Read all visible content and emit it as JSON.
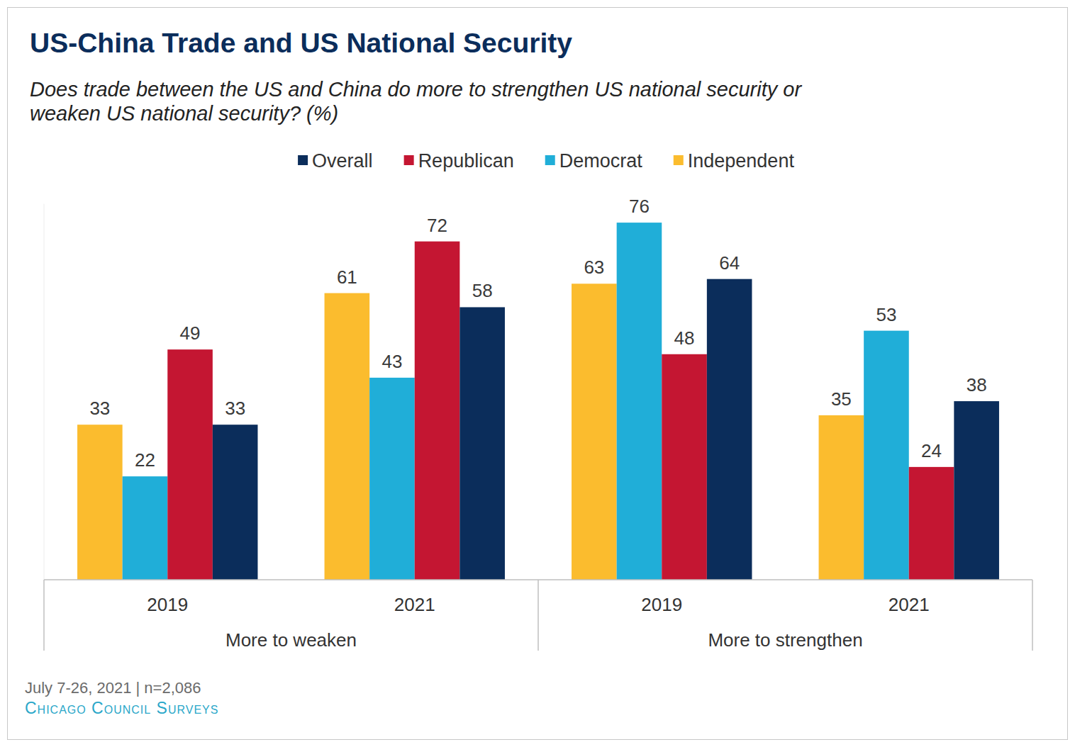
{
  "chart_data": {
    "type": "bar",
    "title": "US-China Trade and US National Security",
    "subtitle": [
      "Does trade between the US and China do more to strengthen US national security or",
      "weaken US national security? (%)"
    ],
    "categories": [
      "2019",
      "2021",
      "2019",
      "2021"
    ],
    "category_groups": [
      "More to weaken",
      "More to weaken",
      "More to strengthen",
      "More to strengthen"
    ],
    "series": [
      {
        "name": "Independent",
        "color": "#fbbc2e",
        "values": [
          33,
          61,
          63,
          35
        ]
      },
      {
        "name": "Democrat",
        "color": "#20aed8",
        "values": [
          22,
          43,
          76,
          53
        ]
      },
      {
        "name": "Republican",
        "color": "#c41632",
        "values": [
          49,
          72,
          48,
          24
        ]
      },
      {
        "name": "Overall",
        "color": "#0b2d5b",
        "values": [
          33,
          58,
          64,
          38
        ]
      }
    ],
    "ylim": [
      0,
      80
    ],
    "tick_labels": "x",
    "data_labels": true,
    "grid": false,
    "legend": "top",
    "note": "July 7-26, 2021 | n=2,086",
    "source": "Chicago Council Surveys"
  }
}
